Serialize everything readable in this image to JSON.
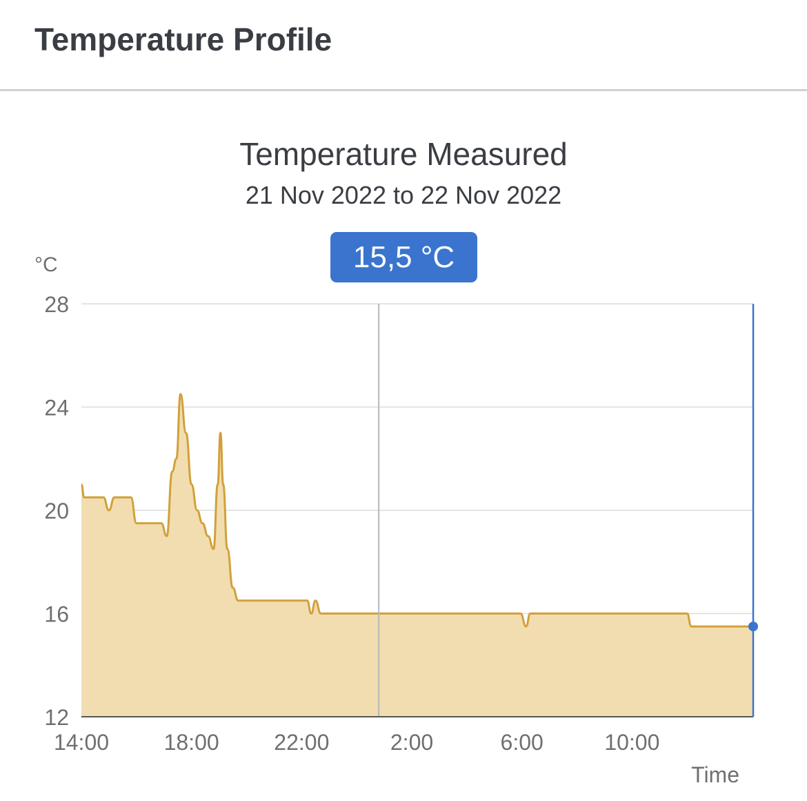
{
  "header": {
    "title": "Temperature Profile"
  },
  "chart_data": {
    "type": "area",
    "title": "Temperature Measured",
    "subtitle": "21 Nov 2022 to 22 Nov 2022",
    "ylabel": "°C",
    "xlabel": "Time",
    "ylim": [
      12,
      28
    ],
    "yticks": [
      12,
      16,
      20,
      24,
      28
    ],
    "xrange_hours": [
      14,
      38.4
    ],
    "xticks": [
      {
        "h": 14,
        "label": "14:00"
      },
      {
        "h": 18,
        "label": "18:00"
      },
      {
        "h": 22,
        "label": "22:00"
      },
      {
        "h": 26,
        "label": "2:00"
      },
      {
        "h": 30,
        "label": "6:00"
      },
      {
        "h": 34,
        "label": "10:00"
      }
    ],
    "day_boundary_hour": 24.8,
    "grid": true,
    "legend": "none",
    "series": [
      {
        "values": [
          [
            14.0,
            21.0
          ],
          [
            14.1,
            20.5
          ],
          [
            14.8,
            20.5
          ],
          [
            15.0,
            20.0
          ],
          [
            15.2,
            20.5
          ],
          [
            15.8,
            20.5
          ],
          [
            16.0,
            19.5
          ],
          [
            16.9,
            19.5
          ],
          [
            17.1,
            19.0
          ],
          [
            17.3,
            21.5
          ],
          [
            17.45,
            22.0
          ],
          [
            17.6,
            24.5
          ],
          [
            17.8,
            23.0
          ],
          [
            18.0,
            21.0
          ],
          [
            18.2,
            20.0
          ],
          [
            18.4,
            19.5
          ],
          [
            18.6,
            19.0
          ],
          [
            18.8,
            18.5
          ],
          [
            18.95,
            21.0
          ],
          [
            19.05,
            23.0
          ],
          [
            19.15,
            21.0
          ],
          [
            19.3,
            18.5
          ],
          [
            19.5,
            17.0
          ],
          [
            19.7,
            16.5
          ],
          [
            22.2,
            16.5
          ],
          [
            22.35,
            16.0
          ],
          [
            22.5,
            16.5
          ],
          [
            22.7,
            16.0
          ],
          [
            29.95,
            16.0
          ],
          [
            30.15,
            15.5
          ],
          [
            30.3,
            16.0
          ],
          [
            36.0,
            16.0
          ],
          [
            36.15,
            15.5
          ],
          [
            38.4,
            15.5
          ]
        ]
      }
    ],
    "tooltip": {
      "value": "15,5 °C",
      "hour": 38.4,
      "temperature": 15.5
    },
    "colors": {
      "line": "#d2a03a",
      "fill": "#f1ddb0",
      "grid": "#dcdcdc",
      "day_boundary": "#b8b8b8",
      "cursor": "#3a74cf",
      "tick_text": "#6f6f6f"
    }
  }
}
